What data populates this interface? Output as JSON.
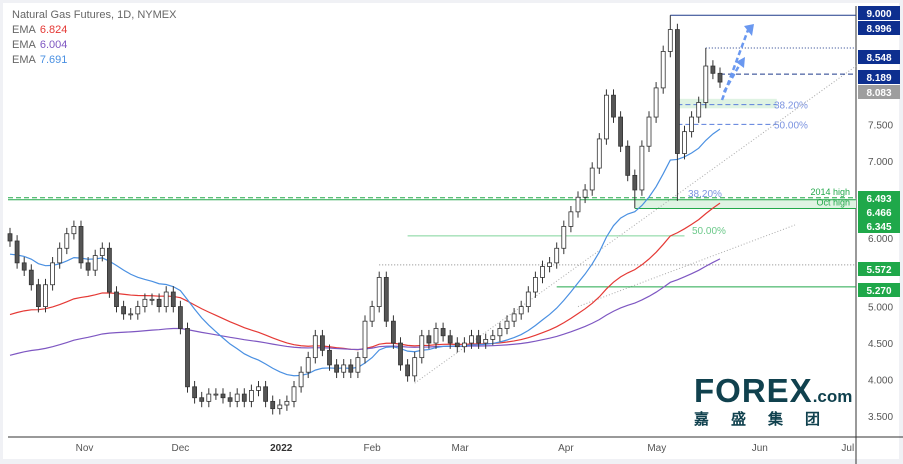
{
  "chart_data": {
    "type": "candlestick",
    "title": "Natural Gas Futures, 1D, NYMEX",
    "emas": [
      {
        "label": "EMA",
        "value": "6.824",
        "color": "#e53935",
        "period": 50,
        "seed": 4.85
      },
      {
        "label": "EMA",
        "value": "6.004",
        "color": "#7e57c2",
        "period": 100,
        "seed": 4.3
      },
      {
        "label": "EMA",
        "value": "7.691",
        "color": "#4a90e2",
        "period": 20,
        "seed": 5.7
      }
    ],
    "ylim": [
      3.2,
      9.2
    ],
    "y_ticks": [
      "3.500",
      "4.000",
      "4.500",
      "5.000",
      "6.000",
      "7.000",
      "7.500"
    ],
    "x_ticks": [
      {
        "label": "Nov",
        "index": 10.5
      },
      {
        "label": "Dec",
        "index": 24
      },
      {
        "label": "2022",
        "index": 38.2
      },
      {
        "label": "Feb",
        "index": 51
      },
      {
        "label": "Mar",
        "index": 63.4
      },
      {
        "label": "Apr",
        "index": 78.3
      },
      {
        "label": "May",
        "index": 91.1
      },
      {
        "label": "Jun",
        "index": 105.6
      },
      {
        "label": "Jul",
        "index": 118
      }
    ],
    "closes": [
      5.9,
      5.6,
      5.5,
      5.3,
      5.0,
      5.3,
      5.6,
      5.8,
      6.0,
      6.1,
      5.6,
      5.5,
      5.7,
      5.8,
      5.2,
      5.0,
      4.9,
      4.9,
      5.0,
      5.1,
      5.1,
      5.0,
      5.2,
      5.0,
      4.7,
      3.9,
      3.75,
      3.7,
      3.8,
      3.8,
      3.75,
      3.7,
      3.8,
      3.7,
      3.85,
      3.9,
      3.7,
      3.6,
      3.65,
      3.7,
      3.9,
      4.1,
      4.3,
      4.6,
      4.4,
      4.2,
      4.1,
      4.2,
      4.1,
      4.3,
      4.8,
      5.0,
      5.4,
      4.8,
      4.5,
      4.2,
      4.05,
      4.3,
      4.6,
      4.5,
      4.7,
      4.6,
      4.5,
      4.45,
      4.5,
      4.6,
      4.5,
      4.55,
      4.6,
      4.7,
      4.8,
      4.9,
      5.0,
      5.2,
      5.4,
      5.55,
      5.6,
      5.8,
      6.1,
      6.3,
      6.5,
      6.6,
      6.9,
      7.3,
      7.9,
      7.6,
      7.2,
      6.8,
      6.6,
      7.2,
      7.6,
      8.0,
      8.5,
      8.8,
      7.1,
      7.4,
      7.6,
      7.8,
      8.3,
      8.2,
      8.08
    ],
    "wick_low_override": {
      "88": 6.35,
      "94": 6.45
    },
    "wick_high_override": {
      "93": 8.996,
      "98": 8.548
    },
    "levels": [
      {
        "price": 8.996,
        "tag": "8.996",
        "style": "solid",
        "color": "#1e3a8a",
        "from": 93
      },
      {
        "price": 8.548,
        "tag": "8.548",
        "style": "dotted",
        "color": "#1e3a8a",
        "from": 98
      },
      {
        "price": 8.189,
        "tag": "8.189",
        "style": "dashed",
        "color": "#1e3a8a",
        "from": 100
      },
      {
        "price": 6.493,
        "tag": "6.493",
        "style": "dashed",
        "color": "#22a84a",
        "from": 0,
        "note": "2014 high"
      },
      {
        "price": 6.466,
        "tag": "6.466",
        "style": "solid",
        "color": "#22a84a",
        "from": 0
      },
      {
        "price": 6.345,
        "tag": "6.345",
        "style": "solid",
        "color": "#22a84a",
        "from": 88,
        "note": "Oct high"
      },
      {
        "price": 5.572,
        "tag": "5.572",
        "style": "dotted",
        "color": "#888888",
        "from": 52
      },
      {
        "price": 5.27,
        "tag": "5.270",
        "style": "solid",
        "color": "#22a84a",
        "from": 77
      }
    ],
    "top_tag": "9.000",
    "last_price": "8.083",
    "fib_upper": [
      {
        "label": "38.20%",
        "price": 7.77
      },
      {
        "label": "50.00%",
        "price": 7.5
      }
    ],
    "fib_lower": [
      {
        "label": "38.20%",
        "price": 6.49
      },
      {
        "label": "50.00%",
        "price": 5.97
      }
    ]
  },
  "colors": {
    "up": "#ffffff",
    "down": "#555555",
    "tag_blue": "#0d2f8f",
    "tag_green": "#1fa84a",
    "tag_gray": "#9e9e9e"
  },
  "logo": {
    "brand": "FOREX",
    "suffix": ".com",
    "chinese": "嘉盛集团"
  }
}
